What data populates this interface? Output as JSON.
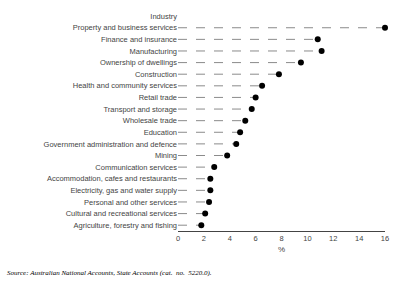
{
  "chart_data": {
    "type": "lollipop",
    "orientation": "horizontal",
    "categories": [
      "Industry",
      "Property and business services",
      "Finance and insurance",
      "Manufacturing",
      "Ownership of dwellings",
      "Construction",
      "Health and community services",
      "Retail trade",
      "Transport and storage",
      "Wholesale trade",
      "Education",
      "Government administration and defence",
      "Mining",
      "Communication services",
      "Accommodation, cafes and restaurants",
      "Electricity, gas and water supply",
      "Personal and other services",
      "Cultural and recreational services",
      "Agriculture, forestry and fishing"
    ],
    "values": [
      null,
      16.0,
      10.8,
      11.1,
      9.5,
      7.8,
      6.5,
      6.0,
      5.7,
      5.2,
      4.8,
      4.5,
      3.8,
      2.8,
      2.5,
      2.5,
      2.4,
      2.1,
      1.8
    ],
    "xlabel": "%",
    "xlim": [
      0,
      16
    ],
    "xticks": [
      0,
      2,
      4,
      6,
      8,
      10,
      12,
      14,
      16
    ],
    "color": "#000000",
    "line_style": "dashed",
    "grid": false,
    "annotations": [
      "Source: Australian National Accounts, State Accounts (cat.  no.  5220.0)."
    ]
  }
}
